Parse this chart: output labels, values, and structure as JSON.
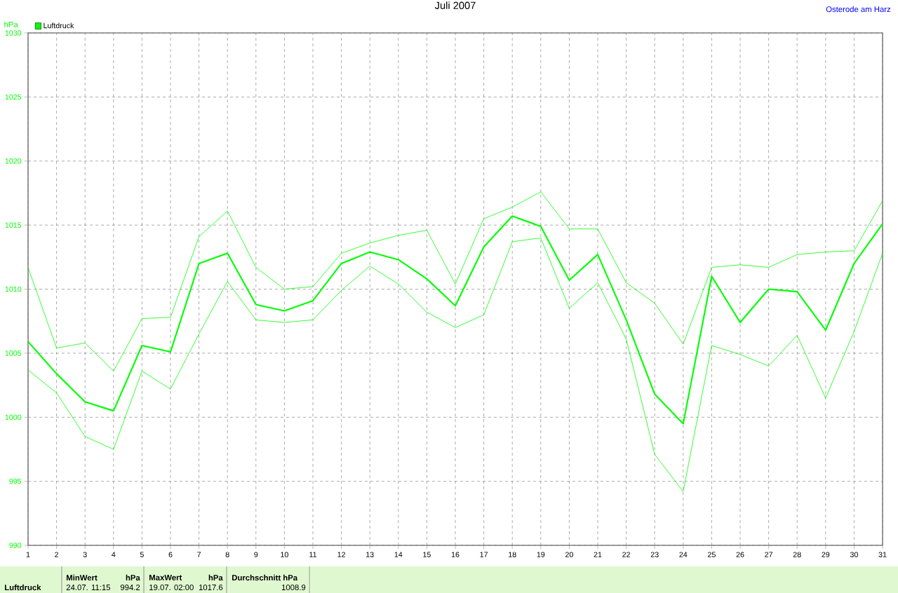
{
  "chart_data": {
    "type": "line",
    "title": "Juli 2007",
    "ylabel": "hPa",
    "x": [
      1,
      2,
      3,
      4,
      5,
      6,
      7,
      8,
      9,
      10,
      11,
      12,
      13,
      14,
      15,
      16,
      17,
      18,
      19,
      20,
      21,
      22,
      23,
      24,
      25,
      26,
      27,
      28,
      29,
      30,
      31
    ],
    "series": [
      {
        "name": "Luftdruck",
        "color": "#00ff00",
        "values": [
          1005.9,
          1003.4,
          1001.2,
          1000.5,
          1005.6,
          1005.1,
          1012.0,
          1012.8,
          1008.8,
          1008.3,
          1009.1,
          1012.0,
          1012.9,
          1012.3,
          1010.8,
          1008.7,
          1013.3,
          1015.7,
          1014.9,
          1010.7,
          1012.7,
          1007.6,
          1001.8,
          999.5,
          1011.0,
          1007.4,
          1010.0,
          1009.8,
          1006.8,
          1012.0,
          1015.1
        ]
      },
      {
        "color": "#00ff00",
        "values": [
          1011.7,
          1005.4,
          1005.8,
          1003.6,
          1007.7,
          1007.8,
          1014.1,
          1016.1,
          1011.7,
          1010.0,
          1010.2,
          1012.8,
          1013.6,
          1014.2,
          1014.6,
          1010.4,
          1015.5,
          1016.4,
          1017.6,
          1014.7,
          1014.7,
          1010.5,
          1008.9,
          1005.7,
          1011.7,
          1011.9,
          1011.7,
          1012.7,
          1012.9,
          1013.0,
          1016.9
        ]
      },
      {
        "color": "#00ff00",
        "values": [
          1003.7,
          1001.9,
          998.5,
          997.5,
          1003.6,
          1002.2,
          1006.5,
          1010.6,
          1007.6,
          1007.4,
          1007.6,
          1009.9,
          1011.8,
          1010.4,
          1008.2,
          1007.0,
          1008.0,
          1013.7,
          1014.0,
          1008.5,
          1010.5,
          1006.1,
          997.1,
          994.2,
          1005.6,
          1004.9,
          1004.0,
          1006.4,
          1001.5,
          1006.7,
          1012.8
        ]
      }
    ],
    "xlim": [
      1,
      31
    ],
    "xticks": [
      1,
      2,
      3,
      4,
      5,
      6,
      7,
      8,
      9,
      10,
      11,
      12,
      13,
      14,
      15,
      16,
      17,
      18,
      19,
      20,
      21,
      22,
      23,
      24,
      25,
      26,
      27,
      28,
      29,
      30,
      31
    ],
    "ylim": [
      990,
      1030
    ],
    "yticks": [
      990,
      995,
      1000,
      1005,
      1010,
      1015,
      1020,
      1025,
      1030
    ],
    "grid": true,
    "legend": "top left",
    "annotations": [
      "Osterode am Harz",
      "Luftdruck",
      "MinWert",
      "hPa",
      "24.07.  11:15",
      "994.2",
      "MaxWert",
      "hPa",
      "19.07.  02:00",
      "1017.6",
      "Durchschnitt  hPa",
      "1008.9"
    ]
  }
}
